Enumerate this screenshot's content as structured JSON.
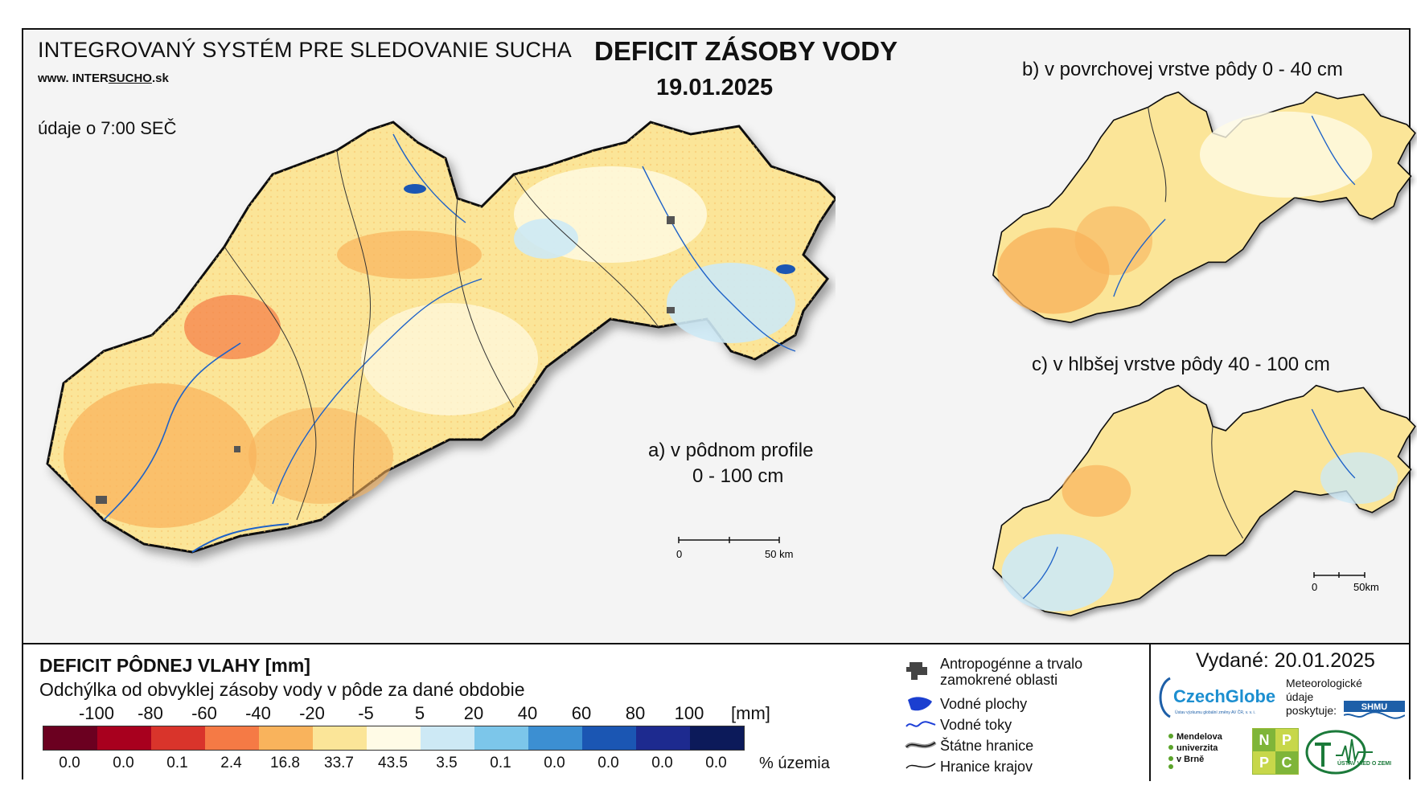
{
  "header": {
    "system_title": "INTEGROVANÝ SYSTÉM PRE SLEDOVANIE SUCHA",
    "website_prefix": "www. INTER",
    "website_brand": "SUCHO",
    "website_suffix": ".sk",
    "observation": "údaje o 7:00 SEČ",
    "title": "DEFICIT ZÁSOBY VODY",
    "date": "19.01.2025"
  },
  "maps": {
    "a_label_line1": "a) v pôdnom profile",
    "a_label_line2": "0 - 100 cm",
    "b_label": "b) v povrchovej vrstve pôdy 0 - 40 cm",
    "c_label": "c) v hlbšej vrstve pôdy 40 - 100 cm",
    "scale_main": {
      "zero": "0",
      "end": "50 km"
    },
    "scale_small": {
      "zero": "0",
      "end": "50km"
    }
  },
  "legend": {
    "title": "DEFICIT PÔDNEJ VLAHY [mm]",
    "subtitle": "Odchýlka od obvyklej zásoby vody v pôde za dané obdobie",
    "unit": "[mm]",
    "area_unit": "% územia",
    "ticks": [
      "-100",
      "-80",
      "-60",
      "-40",
      "-20",
      "-5",
      "5",
      "20",
      "40",
      "60",
      "80",
      "100"
    ],
    "colors": [
      "#6b0020",
      "#a8001e",
      "#d9342b",
      "#f57a45",
      "#f9b35c",
      "#fbe598",
      "#fffbe6",
      "#cde9f5",
      "#7cc6ea",
      "#3c8fd2",
      "#1b56b3",
      "#1d2a8f",
      "#0c1a5a"
    ],
    "percentages": [
      "0.0",
      "0.0",
      "0.1",
      "2.4",
      "16.8",
      "33.7",
      "43.5",
      "3.5",
      "0.1",
      "0.0",
      "0.0",
      "0.0",
      "0.0"
    ]
  },
  "overlays": {
    "anthropogenic": "Antropogénne a trvalo zamokrené oblasti",
    "water_bodies": "Vodné plochy",
    "rivers": "Vodné toky",
    "state_border": "Štátne hranice",
    "regional_border": "Hranice krajov"
  },
  "footer": {
    "issued": "Vydané: 20.01.2025",
    "czechglobe": "CzechGlobe",
    "czechglobe_sub": "Ústav výzkumu globální změny AV ČR, v. v. i.",
    "meteo_line1": "Meteorologické",
    "meteo_line2": "údaje",
    "meteo_line3": "poskytuje:",
    "shmu": "SHMU",
    "mendel_line1": "Mendelova",
    "mendel_line2": "univerzita",
    "mendel_line3": "v Brně",
    "nppc": [
      "N",
      "P",
      "P",
      "C"
    ],
    "uvz": "ÚSTAV VIED O ZEMI"
  }
}
